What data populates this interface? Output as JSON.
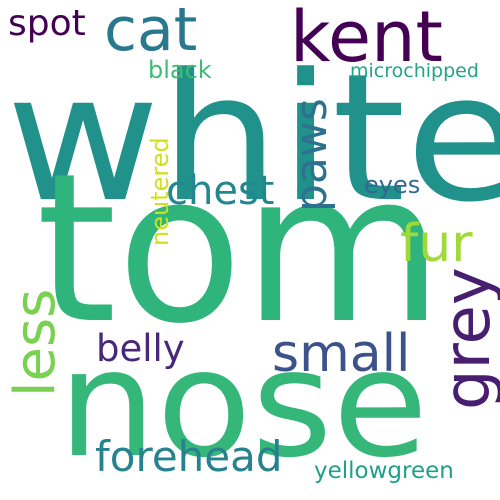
{
  "cloud": {
    "background": "#ffffff",
    "words": {
      "white": {
        "text": "white",
        "color": "#21918c"
      },
      "tom": {
        "text": "tom",
        "color": "#2fb47c"
      },
      "nose": {
        "text": "nose",
        "color": "#35b779"
      },
      "kent": {
        "text": "kent",
        "color": "#440154"
      },
      "cat": {
        "text": "cat",
        "color": "#2a788e"
      },
      "spot": {
        "text": "spot",
        "color": "#440154"
      },
      "black": {
        "text": "black",
        "color": "#3dbc74"
      },
      "microchipped": {
        "text": "microchipped",
        "color": "#21a685"
      },
      "chest": {
        "text": "chest",
        "color": "#23888e"
      },
      "eyes": {
        "text": "eyes",
        "color": "#31688e"
      },
      "fur": {
        "text": "fur",
        "color": "#a0da39"
      },
      "small": {
        "text": "small",
        "color": "#3b528b"
      },
      "belly": {
        "text": "belly",
        "color": "#482878"
      },
      "forehead": {
        "text": "forehead",
        "color": "#26828e"
      },
      "yellowgreen": {
        "text": "yellowgreen",
        "color": "#1fa088"
      },
      "paws": {
        "text": "paws",
        "color": "#2c728e"
      },
      "neutered": {
        "text": "neutered",
        "color": "#d0e11c"
      },
      "less": {
        "text": "less",
        "color": "#7ad151"
      },
      "grey": {
        "text": "grey",
        "color": "#481f70"
      }
    }
  }
}
